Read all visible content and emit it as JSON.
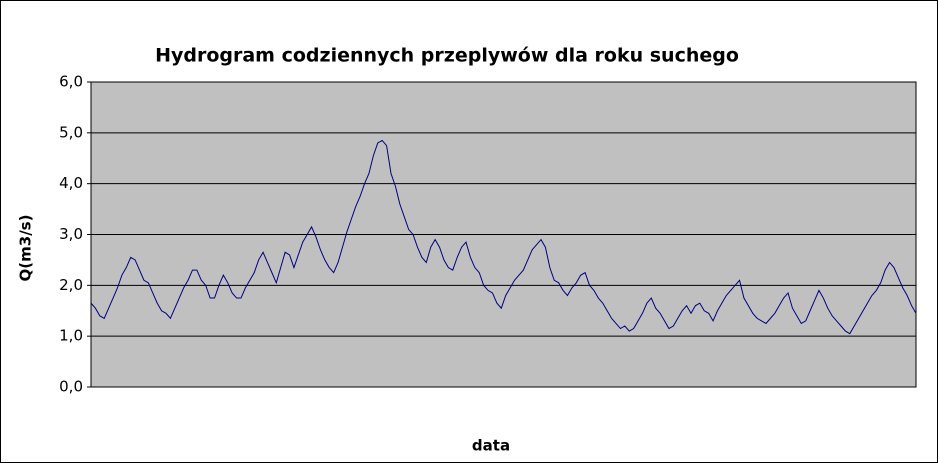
{
  "chart_data": {
    "type": "line",
    "title": "Hydrogram codziennych przeplywów dla roku suchego",
    "x_label": "data",
    "y_label": "Q(m3/s)",
    "series": [
      {
        "color": "#000080",
        "values": [
          1.65,
          1.55,
          1.4,
          1.35,
          1.55,
          1.75,
          1.95,
          2.2,
          2.35,
          2.55,
          2.5,
          2.3,
          2.1,
          2.05,
          1.85,
          1.65,
          1.5,
          1.45,
          1.35,
          1.55,
          1.75,
          1.95,
          2.1,
          2.3,
          2.3,
          2.1,
          2.0,
          1.75,
          1.75,
          2.0,
          2.2,
          2.05,
          1.85,
          1.75,
          1.75,
          1.95,
          2.1,
          2.25,
          2.5,
          2.65,
          2.45,
          2.25,
          2.05,
          2.35,
          2.65,
          2.6,
          2.35,
          2.6,
          2.85,
          3.0,
          3.15,
          2.95,
          2.7,
          2.5,
          2.35,
          2.25,
          2.45,
          2.75,
          3.05,
          3.3,
          3.55,
          3.75,
          4.0,
          4.2,
          4.55,
          4.8,
          4.85,
          4.75,
          4.2,
          3.95,
          3.6,
          3.35,
          3.1,
          3.0,
          2.75,
          2.55,
          2.45,
          2.75,
          2.9,
          2.75,
          2.5,
          2.35,
          2.3,
          2.55,
          2.75,
          2.85,
          2.55,
          2.35,
          2.25,
          2.0,
          1.9,
          1.85,
          1.65,
          1.55,
          1.8,
          1.95,
          2.1,
          2.2,
          2.3,
          2.5,
          2.7,
          2.8,
          2.9,
          2.75,
          2.35,
          2.1,
          2.05,
          1.9,
          1.8,
          1.95,
          2.05,
          2.2,
          2.25,
          2.0,
          1.9,
          1.75,
          1.65,
          1.5,
          1.35,
          1.25,
          1.15,
          1.2,
          1.1,
          1.15,
          1.3,
          1.45,
          1.65,
          1.75,
          1.55,
          1.45,
          1.3,
          1.15,
          1.2,
          1.35,
          1.5,
          1.6,
          1.45,
          1.6,
          1.65,
          1.5,
          1.45,
          1.3,
          1.5,
          1.65,
          1.8,
          1.9,
          2.0,
          2.1,
          1.75,
          1.6,
          1.45,
          1.35,
          1.3,
          1.25,
          1.35,
          1.45,
          1.6,
          1.75,
          1.85,
          1.55,
          1.4,
          1.25,
          1.3,
          1.5,
          1.7,
          1.9,
          1.75,
          1.55,
          1.4,
          1.3,
          1.2,
          1.1,
          1.05,
          1.2,
          1.35,
          1.5,
          1.65,
          1.8,
          1.9,
          2.05,
          2.3,
          2.45,
          2.35,
          2.15,
          1.95,
          1.8,
          1.6,
          1.45
        ]
      }
    ],
    "ylim": [
      0,
      6
    ],
    "yticks": [
      {
        "value": 0,
        "label": "0,0"
      },
      {
        "value": 1,
        "label": "1,0"
      },
      {
        "value": 2,
        "label": "2,0"
      },
      {
        "value": 3,
        "label": "3,0"
      },
      {
        "value": 4,
        "label": "4,0"
      },
      {
        "value": 5,
        "label": "5,0"
      },
      {
        "value": 6,
        "label": "6,0"
      }
    ],
    "grid": true,
    "background": "#c0c0c0"
  }
}
